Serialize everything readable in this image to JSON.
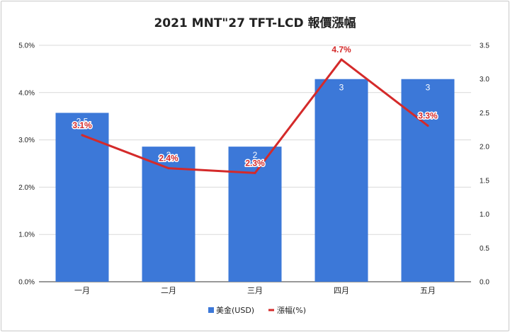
{
  "chart_data": {
    "type": "bar",
    "title": "2021 MNT\"27 TFT-LCD 報價漲幅",
    "categories": [
      "一月",
      "二月",
      "三月",
      "四月",
      "五月"
    ],
    "series": [
      {
        "name": "美金(USD)",
        "type": "bar",
        "axis": "right",
        "values": [
          2.5,
          2,
          2,
          3,
          3
        ],
        "labels": [
          "2.5",
          "2",
          "2",
          "3",
          "3"
        ],
        "color": "#3c78d8"
      },
      {
        "name": "漲幅(%)",
        "type": "line",
        "axis": "left",
        "values": [
          3.1,
          2.4,
          2.3,
          4.7,
          3.3
        ],
        "labels": [
          "3.1%",
          "2.4%",
          "2.3%",
          "4.7%",
          "3.3%"
        ],
        "color": "#d42a2a"
      }
    ],
    "y_left": {
      "ylim": [
        0,
        5
      ],
      "ticks": [
        0,
        1,
        2,
        3,
        4,
        5
      ],
      "tick_labels": [
        "0.0%",
        "1.0%",
        "2.0%",
        "3.0%",
        "4.0%",
        "5.0%"
      ]
    },
    "y_right": {
      "ylim": [
        0,
        3.5
      ],
      "ticks": [
        0,
        0.5,
        1,
        1.5,
        2,
        2.5,
        3,
        3.5
      ],
      "tick_labels": [
        "0.0",
        "0.5",
        "1.0",
        "1.5",
        "2.0",
        "2.5",
        "3.0",
        "3.5"
      ]
    },
    "grid": true,
    "legend": "bottom"
  }
}
